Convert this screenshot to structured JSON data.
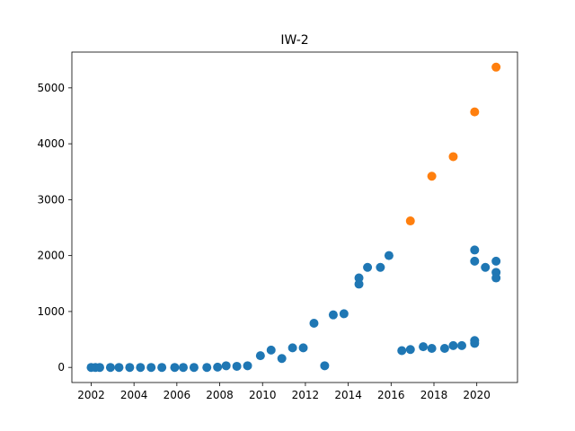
{
  "chart_data": {
    "type": "scatter",
    "title": "IW-2",
    "xlabel": "",
    "ylabel": "",
    "xlim": [
      2001.1,
      2021.9
    ],
    "ylim": [
      -270,
      5640
    ],
    "xticks": [
      2002,
      2004,
      2006,
      2008,
      2010,
      2012,
      2014,
      2016,
      2018,
      2020
    ],
    "yticks": [
      0,
      1000,
      2000,
      3000,
      4000,
      5000
    ],
    "grid": false,
    "series": [
      {
        "color": "#1f77b4",
        "points": [
          [
            2002.0,
            0
          ],
          [
            2002.2,
            0
          ],
          [
            2002.4,
            0
          ],
          [
            2002.9,
            0
          ],
          [
            2003.3,
            0
          ],
          [
            2003.8,
            0
          ],
          [
            2004.3,
            0
          ],
          [
            2004.8,
            0
          ],
          [
            2005.3,
            0
          ],
          [
            2005.9,
            0
          ],
          [
            2006.3,
            0
          ],
          [
            2006.8,
            0
          ],
          [
            2007.4,
            0
          ],
          [
            2007.9,
            5
          ],
          [
            2008.3,
            30
          ],
          [
            2008.8,
            20
          ],
          [
            2009.3,
            30
          ],
          [
            2009.9,
            210
          ],
          [
            2010.4,
            310
          ],
          [
            2010.9,
            160
          ],
          [
            2011.4,
            350
          ],
          [
            2011.9,
            350
          ],
          [
            2012.4,
            790
          ],
          [
            2012.9,
            30
          ],
          [
            2013.3,
            940
          ],
          [
            2013.8,
            960
          ],
          [
            2014.5,
            1600
          ],
          [
            2014.5,
            1490
          ],
          [
            2014.9,
            1790
          ],
          [
            2015.5,
            1790
          ],
          [
            2015.9,
            2000
          ],
          [
            2016.5,
            300
          ],
          [
            2016.9,
            320
          ],
          [
            2017.5,
            370
          ],
          [
            2017.9,
            340
          ],
          [
            2018.5,
            340
          ],
          [
            2018.9,
            390
          ],
          [
            2019.3,
            390
          ],
          [
            2019.9,
            480
          ],
          [
            2019.9,
            430
          ],
          [
            2019.9,
            2100
          ],
          [
            2019.9,
            1900
          ],
          [
            2020.4,
            1790
          ],
          [
            2020.9,
            1900
          ],
          [
            2020.9,
            1700
          ],
          [
            2020.9,
            1600
          ]
        ]
      },
      {
        "color": "#ff7f0e",
        "points": [
          [
            2016.9,
            2620
          ],
          [
            2017.9,
            3420
          ],
          [
            2018.9,
            3770
          ],
          [
            2019.9,
            4570
          ],
          [
            2020.9,
            5370
          ]
        ]
      }
    ]
  }
}
